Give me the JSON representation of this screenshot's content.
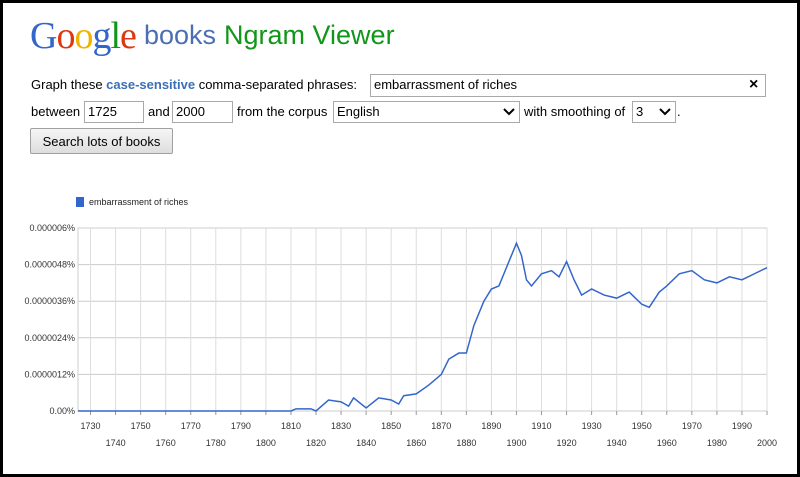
{
  "header": {
    "logo": "Google",
    "product": "books",
    "title": "Ngram Viewer"
  },
  "form": {
    "label_prefix": "Graph these",
    "label_emphasis": "case-sensitive",
    "label_suffix": "comma-separated phrases:",
    "phrases": "embarrassment of riches",
    "clear": "×",
    "between": "between",
    "start_year": "1725",
    "and": "and",
    "end_year": "2000",
    "corpus_label": "from the corpus",
    "corpus": "English",
    "smoothing_label": "with smoothing of",
    "smoothing": "3",
    "period": ".",
    "submit": "Search lots of books"
  },
  "chart_data": {
    "type": "line",
    "x": [
      1725,
      1810,
      1812,
      1818,
      1820,
      1825,
      1830,
      1833,
      1835,
      1840,
      1845,
      1850,
      1853,
      1855,
      1860,
      1865,
      1870,
      1873,
      1877,
      1880,
      1883,
      1887,
      1890,
      1893,
      1896,
      1898,
      1900,
      1902,
      1904,
      1906,
      1910,
      1914,
      1917,
      1920,
      1923,
      1926,
      1930,
      1935,
      1940,
      1945,
      1950,
      1953,
      1957,
      1960,
      1965,
      1970,
      1975,
      1980,
      1985,
      1990,
      1995,
      2000
    ],
    "series": [
      {
        "name": "embarrassment of riches",
        "color": "#3366cc",
        "values": [
          0,
          0,
          7e-08,
          7e-08,
          0,
          3.6e-07,
          3e-07,
          1.6e-07,
          4.3e-07,
          1e-07,
          4.3e-07,
          3.6e-07,
          2.3e-07,
          5e-07,
          5.6e-07,
          8.5e-07,
          1.2e-06,
          1.7e-06,
          1.9e-06,
          1.9e-06,
          2.8e-06,
          3.6e-06,
          4e-06,
          4.1e-06,
          4.7e-06,
          5.1e-06,
          5.5e-06,
          5.1e-06,
          4.3e-06,
          4.1e-06,
          4.5e-06,
          4.6e-06,
          4.4e-06,
          4.9e-06,
          4.3e-06,
          3.8e-06,
          4e-06,
          3.8e-06,
          3.7e-06,
          3.9e-06,
          3.5e-06,
          3.4e-06,
          3.9e-06,
          4.1e-06,
          4.5e-06,
          4.6e-06,
          4.3e-06,
          4.2e-06,
          4.4e-06,
          4.3e-06,
          4.5e-06,
          4.7e-06
        ]
      }
    ],
    "xlim": [
      1725,
      2000
    ],
    "xticks": [
      1730,
      1740,
      1750,
      1760,
      1770,
      1780,
      1790,
      1800,
      1810,
      1820,
      1830,
      1840,
      1850,
      1860,
      1870,
      1880,
      1890,
      1900,
      1910,
      1920,
      1930,
      1940,
      1950,
      1960,
      1970,
      1980,
      1990,
      2000
    ],
    "ylim": [
      0,
      6e-06
    ],
    "yticks": [
      {
        "value": 0,
        "label": "0.00%"
      },
      {
        "value": 1.2e-06,
        "label": "0.0000012%"
      },
      {
        "value": 2.4e-06,
        "label": "0.0000024%"
      },
      {
        "value": 3.6e-06,
        "label": "0.0000036%"
      },
      {
        "value": 4.8e-06,
        "label": "0.0000048%"
      },
      {
        "value": 6e-06,
        "label": "0.000006%"
      }
    ],
    "grid": true
  }
}
